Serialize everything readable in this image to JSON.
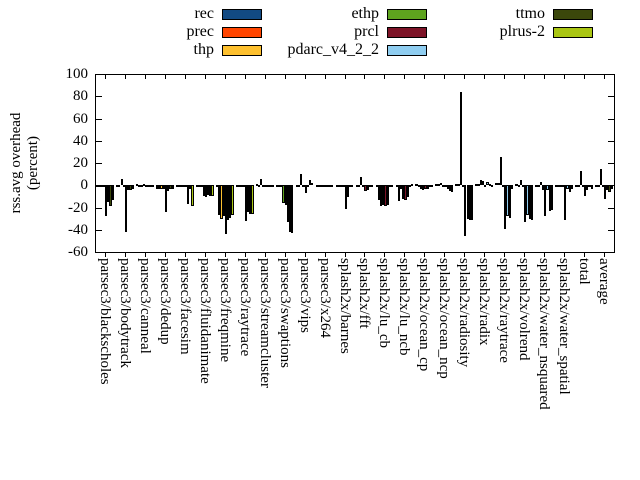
{
  "y_axis": {
    "title_line1": "rss.avg overhead",
    "title_line2": "(percent)",
    "ticks": [
      100,
      80,
      60,
      40,
      20,
      0,
      -20,
      -40,
      -60
    ],
    "min": -60,
    "max": 100
  },
  "legend_columns": [
    [
      0,
      1,
      2
    ],
    [
      3,
      4,
      5
    ],
    [
      6,
      7
    ]
  ],
  "chart_data": {
    "type": "bar",
    "title": "",
    "xlabel": "",
    "ylabel": "rss.avg overhead (percent)",
    "ylim": [
      -60,
      100
    ],
    "grid": false,
    "legend_position": "top",
    "categories": [
      "parsec3/blackscholes",
      "parsec3/bodytrack",
      "parsec3/canneal",
      "parsec3/dedup",
      "parsec3/facesim",
      "parsec3/fluidanimate",
      "parsec3/freqmine",
      "parsec3/raytrace",
      "parsec3/streamcluster",
      "parsec3/swaptions",
      "parsec3/vips",
      "parsec3/x264",
      "splash2x/barnes",
      "splash2x/fft",
      "splash2x/lu_cb",
      "splash2x/lu_ncb",
      "splash2x/ocean_cp",
      "splash2x/ocean_ncp",
      "splash2x/radiosity",
      "splash2x/radix",
      "splash2x/raytrace",
      "splash2x/volrend",
      "splash2x/water_nsquared",
      "splash2x/water_spatial",
      "total",
      "average"
    ],
    "series": [
      {
        "name": "rec",
        "color": "#124a83",
        "values": [
          -1,
          -2,
          1,
          -3,
          -1,
          -1,
          -1,
          -2,
          1,
          -2,
          -1,
          -1,
          -2,
          -1,
          -2,
          -2,
          1,
          1,
          1,
          1,
          2,
          1,
          -1,
          -2,
          -1,
          -1
        ]
      },
      {
        "name": "prec",
        "color": "#ff4500",
        "values": [
          -1,
          -2,
          -1,
          -3,
          -1,
          -1,
          -27,
          -2,
          -1,
          -2,
          -2,
          -1,
          -2,
          -1,
          -13,
          -14,
          -2,
          1,
          1,
          1,
          2,
          -2,
          -2,
          -2,
          -1,
          -2
        ]
      },
      {
        "name": "thp",
        "color": "#fdc02f",
        "values": [
          -2,
          6,
          -1,
          -3,
          -2,
          -2,
          -30,
          -2,
          6,
          -2,
          10,
          -1,
          -2,
          7,
          -19,
          -3,
          -3,
          2,
          84,
          5,
          25,
          5,
          3,
          -2,
          13,
          15
        ]
      },
      {
        "name": "ethp",
        "color": "#5ea41e",
        "values": [
          -2,
          -2,
          1,
          -3,
          -1,
          -10,
          -28,
          -2,
          -1,
          -16,
          -2,
          -1,
          -2,
          -2,
          -18,
          -12,
          -4,
          -2,
          -2,
          4,
          -2,
          -2,
          -4,
          -2,
          -2,
          -2
        ]
      },
      {
        "name": "prcl",
        "color": "#7d1327",
        "values": [
          -28,
          -42,
          -2,
          -24,
          -2,
          -11,
          -44,
          -32,
          -2,
          -18,
          -7,
          -1,
          -21,
          -5,
          -19,
          -13,
          -3,
          -2,
          -46,
          -1,
          -39,
          -33,
          -28,
          -31,
          -10,
          -12
        ]
      },
      {
        "name": "pdarc_v4_2_2",
        "color": "#8fcdf0",
        "values": [
          -15,
          -4,
          -1,
          -5,
          -17,
          -9,
          -31,
          -24,
          -2,
          -33,
          -1,
          -1,
          -11,
          -4,
          -18,
          -11,
          -3,
          -3,
          -30,
          3,
          -28,
          -27,
          -4,
          -3,
          -4,
          -4
        ]
      },
      {
        "name": "ttmo",
        "color": "#3b470b",
        "values": [
          -19,
          -4,
          -1,
          -3,
          -3,
          -10,
          -29,
          -26,
          -1,
          -42,
          5,
          -1,
          -2,
          -2,
          -2,
          -2,
          -2,
          -5,
          -31,
          1,
          -29,
          -30,
          -23,
          -6,
          -2,
          -6
        ]
      },
      {
        "name": "plrus-2",
        "color": "#aac613",
        "values": [
          -13,
          -3,
          -1,
          -3,
          -19,
          -10,
          -27,
          -26,
          -2,
          -43,
          2,
          -1,
          -2,
          -2,
          -2,
          1,
          -2,
          -6,
          -31,
          -2,
          -3,
          -31,
          -22,
          -3,
          -3,
          -3
        ]
      }
    ]
  }
}
